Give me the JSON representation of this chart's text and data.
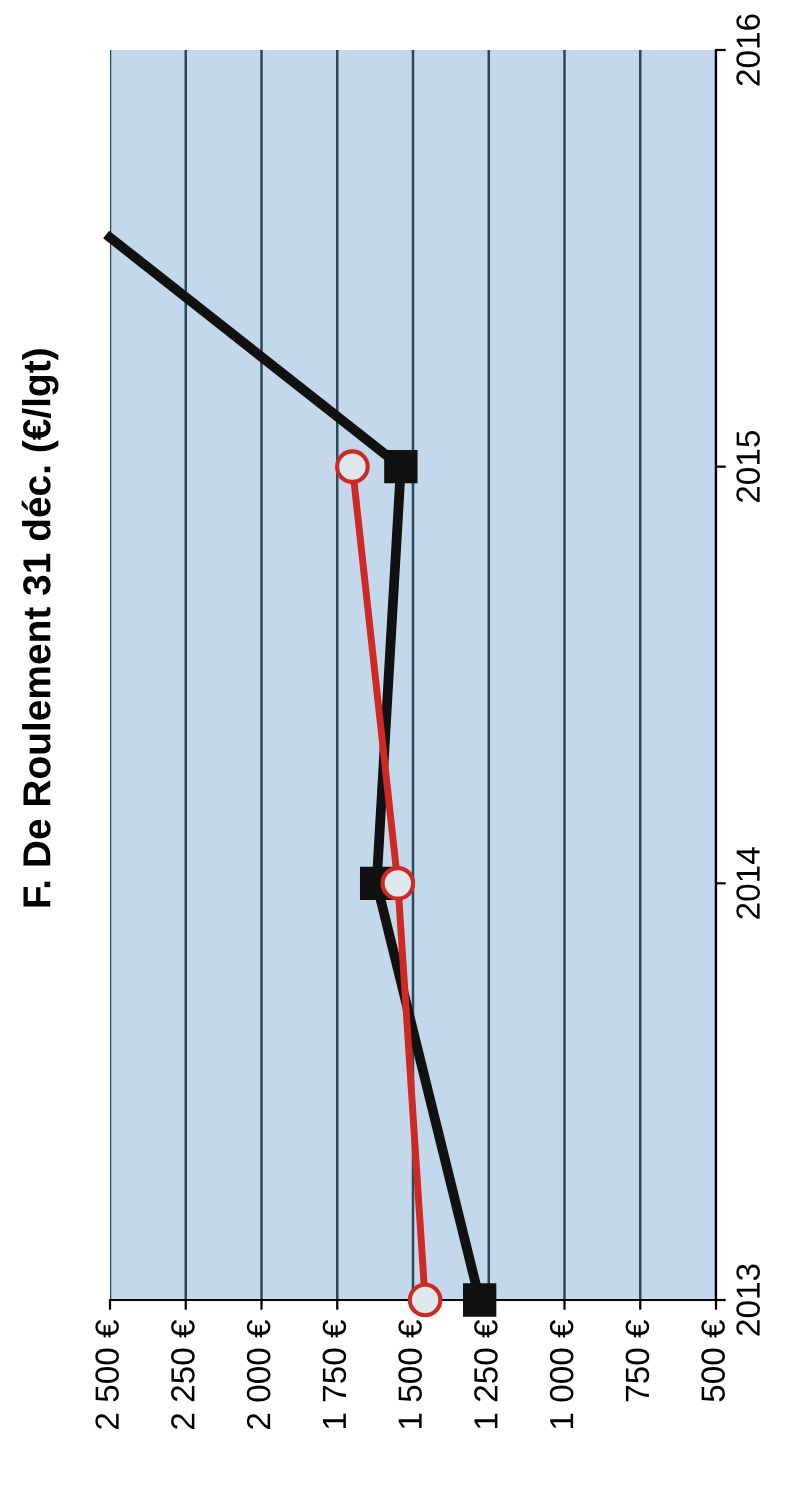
{
  "chart_data": {
    "type": "line",
    "title": "F. De Roulement 31 déc. (€/lgt)",
    "series": [
      {
        "color": "#111111",
        "marker": "square",
        "x": [
          1280,
          1620,
          1540
        ],
        "values": [
          2013,
          2014,
          2015
        ]
      },
      {
        "color": "#111111",
        "marker": "none",
        "x": [
          1540,
          2500
        ],
        "values": [
          2015,
          2015.55
        ]
      },
      {
        "color": "#cc2a22",
        "marker": "circle",
        "x": [
          1460,
          1550,
          1700
        ],
        "values": [
          2013,
          2014,
          2015
        ]
      }
    ],
    "ylim": [
      2013,
      2016
    ],
    "yticks": [
      2013,
      2014,
      2015,
      2016
    ],
    "xlim": [
      2500,
      500
    ],
    "xticks": [
      {
        "value": 500,
        "label": "500 €"
      },
      {
        "value": 750,
        "label": "750 €"
      },
      {
        "value": 1000,
        "label": "1 000 €"
      },
      {
        "value": 1250,
        "label": "1 250 €"
      },
      {
        "value": 1500,
        "label": "1 500 €"
      },
      {
        "value": 1750,
        "label": "1 750 €"
      },
      {
        "value": 2000,
        "label": "2 000 €"
      },
      {
        "value": 2250,
        "label": "2 250 €"
      },
      {
        "value": 2500,
        "label": "2 500 €"
      }
    ],
    "grid": "x",
    "line_style": "solid"
  }
}
